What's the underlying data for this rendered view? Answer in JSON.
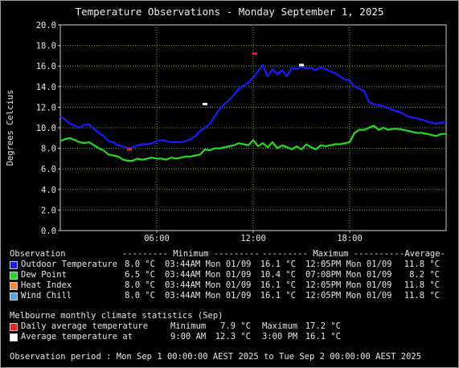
{
  "chart_data": {
    "type": "line",
    "title": "Temperature Observations - Monday September 1, 2025",
    "ylabel": "Degrees Celcius",
    "xlabel": "",
    "ylim": [
      0,
      20
    ],
    "yticks": [
      "0.0",
      "2.0",
      "4.0",
      "6.0",
      "8.0",
      "10.0",
      "12.0",
      "14.0",
      "16.0",
      "18.0",
      "20.0"
    ],
    "xlim": [
      0,
      24
    ],
    "xticks": [
      {
        "label": "06:00",
        "x": 6
      },
      {
        "label": "12:00",
        "x": 12
      },
      {
        "label": "18:00",
        "x": 18
      }
    ],
    "grid": true,
    "series": [
      {
        "name": "Outdoor Temperature",
        "color": "#1a1aff",
        "x": [
          0,
          0.3,
          0.6,
          0.9,
          1.2,
          1.5,
          1.8,
          2.1,
          2.4,
          2.7,
          3.0,
          3.3,
          3.6,
          3.9,
          4.2,
          4.5,
          4.8,
          5.1,
          5.4,
          5.7,
          6.0,
          6.3,
          6.6,
          6.9,
          7.2,
          7.5,
          7.8,
          8.1,
          8.4,
          8.7,
          9.0,
          9.3,
          9.6,
          9.9,
          10.2,
          10.5,
          10.8,
          11.1,
          11.4,
          11.7,
          12.0,
          12.3,
          12.6,
          12.9,
          13.2,
          13.5,
          13.8,
          14.1,
          14.4,
          14.7,
          15.0,
          15.3,
          15.6,
          15.9,
          16.2,
          16.5,
          16.8,
          17.1,
          17.4,
          17.7,
          18.0,
          18.3,
          18.6,
          18.9,
          19.2,
          19.5,
          19.8,
          20.1,
          20.4,
          20.7,
          21.0,
          21.3,
          21.6,
          21.9,
          22.2,
          22.5,
          22.8,
          23.1,
          23.4,
          23.7,
          24.0
        ],
        "values": [
          11.1,
          10.8,
          10.4,
          10.2,
          10.0,
          10.3,
          10.3,
          9.9,
          9.5,
          9.2,
          8.7,
          8.6,
          8.3,
          8.2,
          8.0,
          8.1,
          8.3,
          8.4,
          8.4,
          8.5,
          8.7,
          8.8,
          8.7,
          8.6,
          8.6,
          8.6,
          8.7,
          8.9,
          9.2,
          9.7,
          10.0,
          10.4,
          11.1,
          11.8,
          12.3,
          12.7,
          13.2,
          13.8,
          14.1,
          14.4,
          14.9,
          15.5,
          16.1,
          15.0,
          15.7,
          15.2,
          15.6,
          15.0,
          15.8,
          15.7,
          15.9,
          15.8,
          15.8,
          15.6,
          15.9,
          15.7,
          15.5,
          15.3,
          15.0,
          14.7,
          14.6,
          14.0,
          13.8,
          13.6,
          12.5,
          12.3,
          12.2,
          12.1,
          11.9,
          11.7,
          11.6,
          11.4,
          11.1,
          11.0,
          10.9,
          10.8,
          10.6,
          10.5,
          10.4,
          10.5,
          10.5
        ]
      },
      {
        "name": "Dew Point",
        "color": "#22dd22",
        "x": [
          0,
          0.3,
          0.6,
          0.9,
          1.2,
          1.5,
          1.8,
          2.1,
          2.4,
          2.7,
          3.0,
          3.3,
          3.6,
          3.9,
          4.2,
          4.5,
          4.8,
          5.1,
          5.4,
          5.7,
          6.0,
          6.3,
          6.6,
          6.9,
          7.2,
          7.5,
          7.8,
          8.1,
          8.4,
          8.7,
          9.0,
          9.3,
          9.6,
          9.9,
          10.2,
          10.5,
          10.8,
          11.1,
          11.4,
          11.7,
          12.0,
          12.3,
          12.6,
          12.9,
          13.2,
          13.5,
          13.8,
          14.1,
          14.4,
          14.7,
          15.0,
          15.3,
          15.6,
          15.9,
          16.2,
          16.5,
          16.8,
          17.1,
          17.4,
          17.7,
          18.0,
          18.3,
          18.6,
          18.9,
          19.2,
          19.5,
          19.8,
          20.1,
          20.4,
          20.7,
          21.0,
          21.3,
          21.6,
          21.9,
          22.2,
          22.5,
          22.8,
          23.1,
          23.4,
          23.7,
          24.0
        ],
        "values": [
          8.7,
          8.9,
          9.0,
          8.8,
          8.6,
          8.5,
          8.6,
          8.3,
          8.0,
          7.8,
          7.4,
          7.3,
          7.2,
          6.9,
          6.8,
          6.8,
          7.0,
          6.9,
          7.0,
          7.1,
          7.0,
          7.0,
          6.9,
          7.1,
          7.0,
          7.1,
          7.2,
          7.2,
          7.3,
          7.4,
          7.9,
          7.8,
          8.0,
          8.0,
          8.1,
          8.2,
          8.3,
          8.5,
          8.4,
          8.3,
          8.8,
          8.2,
          8.5,
          8.1,
          8.6,
          8.0,
          8.3,
          8.1,
          7.9,
          8.2,
          7.9,
          8.4,
          8.1,
          7.9,
          8.3,
          8.2,
          8.3,
          8.4,
          8.4,
          8.5,
          8.6,
          9.5,
          9.8,
          9.8,
          10.0,
          10.2,
          9.8,
          10.0,
          9.8,
          9.9,
          9.9,
          9.8,
          9.7,
          9.6,
          9.5,
          9.5,
          9.4,
          9.3,
          9.2,
          9.4,
          9.4
        ]
      }
    ],
    "markers": [
      {
        "name": "daily-avg-min",
        "color": "#ee2222",
        "x": 4.3,
        "y": 7.9
      },
      {
        "name": "daily-avg-max",
        "color": "#ee2222",
        "x": 12.1,
        "y": 17.2
      },
      {
        "name": "average-at-9am",
        "color": "#ffffff",
        "x": 9.0,
        "y": 12.3
      },
      {
        "name": "average-at-3pm",
        "color": "#ffffff",
        "x": 15.0,
        "y": 16.1
      }
    ]
  },
  "legend": {
    "header": {
      "observation": "Observation",
      "minimum": "--------- Minimum ---------",
      "maximum": "--------- Maximum ---------",
      "average": "-Average-"
    },
    "rows": [
      {
        "color": "#1a1aff",
        "label": "Outdoor Temperature",
        "min": "8.0 °C",
        "min_time": "03:44AM Mon 01/09",
        "max": "16.1 °C",
        "max_time": "12:05PM Mon 01/09",
        "avg": "11.8 °C"
      },
      {
        "color": "#22dd22",
        "label": "Dew Point",
        "min": "6.5 °C",
        "min_time": "03:44AM Mon 01/09",
        "max": "10.4 °C",
        "max_time": "07:08PM Mon 01/09",
        "avg": "8.2 °C"
      },
      {
        "color": "#f08a3a",
        "label": "Heat Index",
        "min": "8.0 °C",
        "min_time": "03:44AM Mon 01/09",
        "max": "16.1 °C",
        "max_time": "12:05PM Mon 01/09",
        "avg": "11.8 °C"
      },
      {
        "color": "#4aa6e8",
        "label": "Wind Chill",
        "min": "8.0 °C",
        "min_time": "03:44AM Mon 01/09",
        "max": "16.1 °C",
        "max_time": "12:05PM Mon 01/09",
        "avg": "11.8 °C"
      }
    ]
  },
  "climate": {
    "heading": "Melbourne monthly climate statistics (Sep)",
    "rows": [
      {
        "color": "#ee2222",
        "label": "Daily average temperature",
        "c1": "Minimum",
        "v1": "7.9 °C",
        "c2": "Maximum",
        "v2": "17.2 °C"
      },
      {
        "color": "#ffffff",
        "label": "Average temperature at",
        "c1": "9:00 AM",
        "v1": "12.3 °C",
        "c2": "3:00 PM",
        "v2": "16.1 °C"
      }
    ]
  },
  "footer": "Observation period : Mon Sep 1 00:00:00 AEST 2025 to Tue Sep 2 00:00:00 AEST 2025"
}
